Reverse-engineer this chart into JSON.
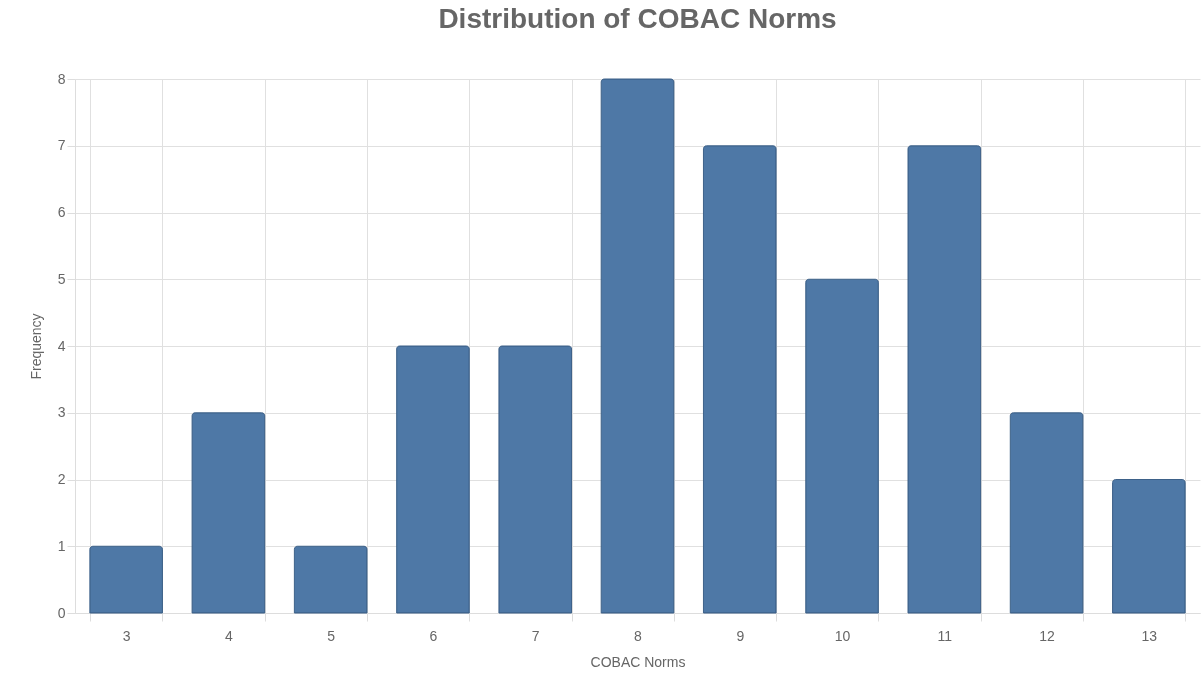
{
  "chart_data": {
    "type": "bar",
    "title": "Distribution of COBAC Norms",
    "xlabel": "COBAC Norms",
    "ylabel": "Frequency",
    "categories": [
      "3",
      "4",
      "5",
      "6",
      "7",
      "8",
      "9",
      "10",
      "11",
      "12",
      "13"
    ],
    "values": [
      1,
      3,
      1,
      4,
      4,
      8,
      7,
      5,
      7,
      3,
      2
    ],
    "color": "#4e78a6",
    "ylim": [
      0,
      8
    ],
    "yticks": [
      0,
      1,
      2,
      3,
      4,
      5,
      6,
      7,
      8
    ],
    "grid": true
  }
}
